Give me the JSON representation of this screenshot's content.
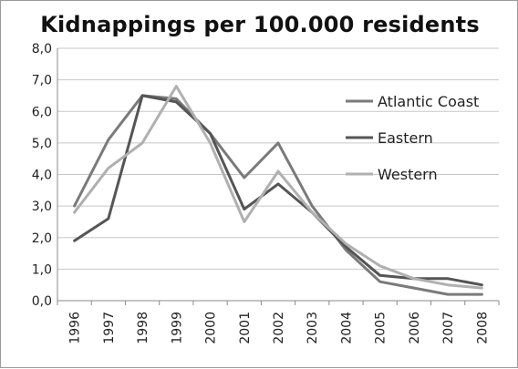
{
  "chart_data": {
    "type": "line",
    "title": "Kidnappings per 100.000 residents",
    "x": [
      "1996",
      "1997",
      "1998",
      "1999",
      "2000",
      "2001",
      "2002",
      "2003",
      "2004",
      "2005",
      "2006",
      "2007",
      "2008"
    ],
    "ylim": [
      0,
      8
    ],
    "yticks": [
      "0,0",
      "1,0",
      "2,0",
      "3,0",
      "4,0",
      "5,0",
      "6,0",
      "7,0",
      "8,0"
    ],
    "grid": true,
    "legend_position": "right",
    "series": [
      {
        "name": "Atlantic Coast",
        "color": "#7a7a7a",
        "values": [
          3.0,
          5.1,
          6.5,
          6.4,
          5.3,
          3.9,
          5.0,
          3.0,
          1.6,
          0.6,
          0.4,
          0.2,
          0.2
        ]
      },
      {
        "name": "Eastern",
        "color": "#555555",
        "values": [
          1.9,
          2.6,
          6.5,
          6.3,
          5.3,
          2.9,
          3.7,
          2.8,
          1.7,
          0.8,
          0.7,
          0.7,
          0.5
        ]
      },
      {
        "name": "Western",
        "color": "#b0b0b0",
        "values": [
          2.8,
          4.2,
          5.0,
          6.8,
          5.0,
          2.5,
          4.1,
          2.8,
          1.8,
          1.1,
          0.7,
          0.5,
          0.4
        ]
      }
    ]
  }
}
